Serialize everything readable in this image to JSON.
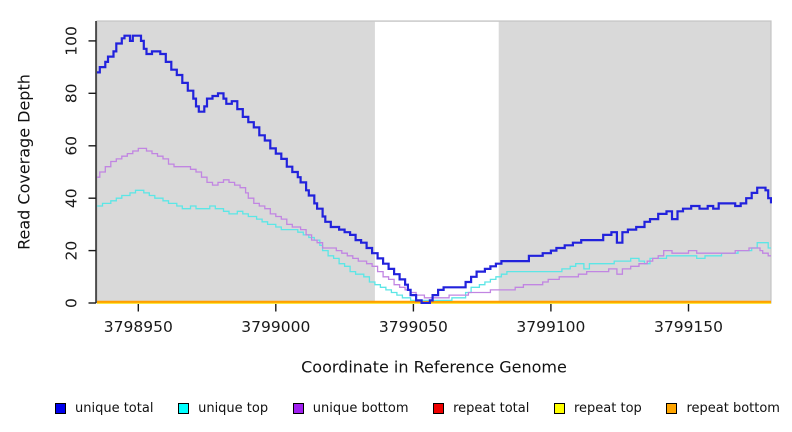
{
  "chart_data": {
    "type": "line",
    "subtype": "step-coverage",
    "title": "",
    "xlabel": "Coordinate in Reference Genome",
    "ylabel": "Read Coverage Depth",
    "xlim": [
      3798935,
      3799180
    ],
    "ylim": [
      0,
      107.6
    ],
    "x_ticks": [
      3798950,
      3799000,
      3799050,
      3799100,
      3799150
    ],
    "y_ticks": [
      0,
      20,
      40,
      60,
      80,
      100
    ],
    "grid": false,
    "legend_position": "bottom",
    "panel_color": "#d9d9d9",
    "panel_border_color": "#c4c4c4",
    "axis_color": "#1a1a1a",
    "highlight_region": {
      "x0": 3799036,
      "x1": 3799081,
      "color": "#ffffff"
    },
    "series": [
      {
        "name": "unique top",
        "color": "#5ce6e6",
        "swatch": "#00ffff",
        "width": 1.3,
        "points": [
          [
            3798935,
            37
          ],
          [
            3798937,
            38
          ],
          [
            3798940,
            39
          ],
          [
            3798942,
            40
          ],
          [
            3798944,
            41
          ],
          [
            3798947,
            42
          ],
          [
            3798949,
            43
          ],
          [
            3798952,
            42
          ],
          [
            3798954,
            41
          ],
          [
            3798956,
            40
          ],
          [
            3798959,
            39
          ],
          [
            3798961,
            38
          ],
          [
            3798964,
            37
          ],
          [
            3798966,
            36
          ],
          [
            3798969,
            37
          ],
          [
            3798971,
            36
          ],
          [
            3798974,
            36
          ],
          [
            3798976,
            37
          ],
          [
            3798978,
            36
          ],
          [
            3798981,
            35
          ],
          [
            3798983,
            34
          ],
          [
            3798986,
            35
          ],
          [
            3798988,
            34
          ],
          [
            3798990,
            33
          ],
          [
            3798993,
            32
          ],
          [
            3798995,
            31
          ],
          [
            3798997,
            30
          ],
          [
            3799000,
            29
          ],
          [
            3799002,
            28
          ],
          [
            3799006,
            28
          ],
          [
            3799008,
            27
          ],
          [
            3799010,
            26
          ],
          [
            3799012,
            25
          ],
          [
            3799014,
            24
          ],
          [
            3799016,
            22
          ],
          [
            3799017,
            20
          ],
          [
            3799019,
            18
          ],
          [
            3799021,
            17
          ],
          [
            3799023,
            15
          ],
          [
            3799025,
            14
          ],
          [
            3799027,
            12
          ],
          [
            3799029,
            11
          ],
          [
            3799032,
            10
          ],
          [
            3799034,
            8
          ],
          [
            3799036,
            7
          ],
          [
            3799038,
            6
          ],
          [
            3799040,
            5
          ],
          [
            3799042,
            4
          ],
          [
            3799044,
            3
          ],
          [
            3799046,
            2
          ],
          [
            3799049,
            1
          ],
          [
            3799060,
            1
          ],
          [
            3799064,
            2
          ],
          [
            3799069,
            4
          ],
          [
            3799071,
            6
          ],
          [
            3799074,
            7
          ],
          [
            3799076,
            8
          ],
          [
            3799078,
            9
          ],
          [
            3799080,
            10
          ],
          [
            3799082,
            11
          ],
          [
            3799084,
            12
          ],
          [
            3799095,
            12
          ],
          [
            3799104,
            13
          ],
          [
            3799107,
            14
          ],
          [
            3799109,
            15
          ],
          [
            3799112,
            13
          ],
          [
            3799114,
            15
          ],
          [
            3799123,
            16
          ],
          [
            3799129,
            17
          ],
          [
            3799132,
            16
          ],
          [
            3799134,
            15
          ],
          [
            3799136,
            17
          ],
          [
            3799142,
            18
          ],
          [
            3799150,
            18
          ],
          [
            3799153,
            17
          ],
          [
            3799156,
            18
          ],
          [
            3799162,
            19
          ],
          [
            3799168,
            20
          ],
          [
            3799173,
            21
          ],
          [
            3799175,
            23
          ],
          [
            3799178,
            23
          ],
          [
            3799179,
            21
          ],
          [
            3799180,
            21
          ]
        ]
      },
      {
        "name": "unique bottom",
        "color": "#c185e2",
        "swatch": "#a020f0",
        "width": 1.3,
        "points": [
          [
            3798935,
            48
          ],
          [
            3798936,
            50
          ],
          [
            3798938,
            52
          ],
          [
            3798940,
            54
          ],
          [
            3798942,
            55
          ],
          [
            3798944,
            56
          ],
          [
            3798946,
            57
          ],
          [
            3798948,
            58
          ],
          [
            3798950,
            59
          ],
          [
            3798953,
            58
          ],
          [
            3798955,
            57
          ],
          [
            3798957,
            56
          ],
          [
            3798959,
            55
          ],
          [
            3798961,
            53
          ],
          [
            3798963,
            52
          ],
          [
            3798967,
            52
          ],
          [
            3798969,
            51
          ],
          [
            3798971,
            50
          ],
          [
            3798973,
            48
          ],
          [
            3798975,
            46
          ],
          [
            3798977,
            45
          ],
          [
            3798979,
            46
          ],
          [
            3798981,
            47
          ],
          [
            3798983,
            46
          ],
          [
            3798985,
            45
          ],
          [
            3798987,
            44
          ],
          [
            3798989,
            42
          ],
          [
            3798990,
            40
          ],
          [
            3798992,
            38
          ],
          [
            3798994,
            37
          ],
          [
            3798996,
            36
          ],
          [
            3798998,
            34
          ],
          [
            3799000,
            33
          ],
          [
            3799002,
            32
          ],
          [
            3799004,
            30
          ],
          [
            3799006,
            29
          ],
          [
            3799009,
            28
          ],
          [
            3799011,
            26
          ],
          [
            3799013,
            24
          ],
          [
            3799015,
            23
          ],
          [
            3799017,
            21
          ],
          [
            3799020,
            21
          ],
          [
            3799022,
            20
          ],
          [
            3799024,
            19
          ],
          [
            3799026,
            18
          ],
          [
            3799028,
            17
          ],
          [
            3799030,
            16
          ],
          [
            3799033,
            15
          ],
          [
            3799035,
            14
          ],
          [
            3799037,
            12
          ],
          [
            3799039,
            10
          ],
          [
            3799041,
            9
          ],
          [
            3799043,
            7
          ],
          [
            3799045,
            6
          ],
          [
            3799047,
            5
          ],
          [
            3799049,
            4
          ],
          [
            3799051,
            3
          ],
          [
            3799054,
            2
          ],
          [
            3799060,
            2
          ],
          [
            3799063,
            3
          ],
          [
            3799070,
            4
          ],
          [
            3799078,
            5
          ],
          [
            3799087,
            6
          ],
          [
            3799090,
            7
          ],
          [
            3799097,
            8
          ],
          [
            3799099,
            9
          ],
          [
            3799103,
            10
          ],
          [
            3799110,
            11
          ],
          [
            3799113,
            12
          ],
          [
            3799121,
            13
          ],
          [
            3799124,
            11
          ],
          [
            3799126,
            13
          ],
          [
            3799129,
            14
          ],
          [
            3799132,
            15
          ],
          [
            3799135,
            16
          ],
          [
            3799137,
            17
          ],
          [
            3799139,
            18
          ],
          [
            3799141,
            20
          ],
          [
            3799144,
            19
          ],
          [
            3799150,
            20
          ],
          [
            3799153,
            19
          ],
          [
            3799163,
            19
          ],
          [
            3799167,
            20
          ],
          [
            3799172,
            21
          ],
          [
            3799176,
            20
          ],
          [
            3799177,
            19
          ],
          [
            3799179,
            18
          ],
          [
            3799180,
            18
          ]
        ]
      },
      {
        "name": "unique total",
        "color": "#2222dc",
        "swatch": "#0000ee",
        "width": 2.2,
        "points": [
          [
            3798935,
            88
          ],
          [
            3798936,
            90
          ],
          [
            3798938,
            92
          ],
          [
            3798939,
            94
          ],
          [
            3798941,
            96
          ],
          [
            3798942,
            99
          ],
          [
            3798944,
            101
          ],
          [
            3798945,
            102
          ],
          [
            3798947,
            100
          ],
          [
            3798948,
            102
          ],
          [
            3798951,
            100
          ],
          [
            3798952,
            97
          ],
          [
            3798953,
            95
          ],
          [
            3798955,
            96
          ],
          [
            3798958,
            95
          ],
          [
            3798960,
            92
          ],
          [
            3798962,
            89
          ],
          [
            3798964,
            87
          ],
          [
            3798966,
            84
          ],
          [
            3798968,
            81
          ],
          [
            3798970,
            78
          ],
          [
            3798971,
            75
          ],
          [
            3798972,
            73
          ],
          [
            3798974,
            75
          ],
          [
            3798975,
            78
          ],
          [
            3798977,
            79
          ],
          [
            3798979,
            80
          ],
          [
            3798981,
            78
          ],
          [
            3798982,
            76
          ],
          [
            3798984,
            77
          ],
          [
            3798986,
            74
          ],
          [
            3798988,
            71
          ],
          [
            3798990,
            69
          ],
          [
            3798992,
            67
          ],
          [
            3798994,
            64
          ],
          [
            3798996,
            62
          ],
          [
            3798998,
            59
          ],
          [
            3799000,
            57
          ],
          [
            3799002,
            55
          ],
          [
            3799004,
            52
          ],
          [
            3799006,
            50
          ],
          [
            3799008,
            48
          ],
          [
            3799009,
            46
          ],
          [
            3799011,
            43
          ],
          [
            3799012,
            41
          ],
          [
            3799014,
            38
          ],
          [
            3799015,
            36
          ],
          [
            3799017,
            33
          ],
          [
            3799018,
            31
          ],
          [
            3799020,
            29
          ],
          [
            3799023,
            28
          ],
          [
            3799025,
            27
          ],
          [
            3799027,
            26
          ],
          [
            3799029,
            24
          ],
          [
            3799031,
            23
          ],
          [
            3799033,
            21
          ],
          [
            3799035,
            19
          ],
          [
            3799037,
            17
          ],
          [
            3799039,
            15
          ],
          [
            3799041,
            13
          ],
          [
            3799043,
            11
          ],
          [
            3799045,
            9
          ],
          [
            3799047,
            7
          ],
          [
            3799048,
            5
          ],
          [
            3799049,
            3
          ],
          [
            3799051,
            1
          ],
          [
            3799053,
            0
          ],
          [
            3799056,
            1
          ],
          [
            3799057,
            3
          ],
          [
            3799059,
            5
          ],
          [
            3799061,
            6
          ],
          [
            3799067,
            6
          ],
          [
            3799069,
            8
          ],
          [
            3799071,
            10
          ],
          [
            3799073,
            12
          ],
          [
            3799076,
            13
          ],
          [
            3799078,
            14
          ],
          [
            3799080,
            15
          ],
          [
            3799082,
            16
          ],
          [
            3799090,
            16
          ],
          [
            3799092,
            18
          ],
          [
            3799097,
            19
          ],
          [
            3799100,
            20
          ],
          [
            3799102,
            21
          ],
          [
            3799105,
            22
          ],
          [
            3799108,
            23
          ],
          [
            3799111,
            24
          ],
          [
            3799117,
            24
          ],
          [
            3799119,
            26
          ],
          [
            3799122,
            27
          ],
          [
            3799124,
            23
          ],
          [
            3799126,
            27
          ],
          [
            3799128,
            28
          ],
          [
            3799131,
            29
          ],
          [
            3799134,
            31
          ],
          [
            3799136,
            32
          ],
          [
            3799139,
            34
          ],
          [
            3799142,
            35
          ],
          [
            3799144,
            32
          ],
          [
            3799146,
            35
          ],
          [
            3799148,
            36
          ],
          [
            3799151,
            37
          ],
          [
            3799154,
            36
          ],
          [
            3799157,
            37
          ],
          [
            3799159,
            36
          ],
          [
            3799161,
            38
          ],
          [
            3799164,
            38
          ],
          [
            3799167,
            37
          ],
          [
            3799169,
            38
          ],
          [
            3799171,
            40
          ],
          [
            3799173,
            42
          ],
          [
            3799175,
            44
          ],
          [
            3799178,
            43
          ],
          [
            3799179,
            40
          ],
          [
            3799180,
            38
          ]
        ]
      },
      {
        "name": "repeat total",
        "color": "#e60000",
        "swatch": "#ee0000",
        "width": 1.3,
        "points": [
          [
            3798935,
            0
          ],
          [
            3799180,
            0
          ]
        ]
      },
      {
        "name": "repeat top",
        "color": "#ffff00",
        "swatch": "#ffff00",
        "width": 1.3,
        "points": [
          [
            3798935,
            0
          ],
          [
            3799180,
            0
          ]
        ]
      },
      {
        "name": "repeat bottom",
        "color": "#ff9f00",
        "swatch": "#ffa500",
        "width": 2.2,
        "points": [
          [
            3798935,
            0
          ],
          [
            3799180,
            0
          ]
        ]
      }
    ],
    "legend_order": [
      "unique total",
      "unique top",
      "unique bottom",
      "repeat total",
      "repeat top",
      "repeat bottom"
    ]
  },
  "labels": {
    "x_title": "Coordinate in Reference Genome",
    "y_title": "Read Coverage Depth"
  }
}
